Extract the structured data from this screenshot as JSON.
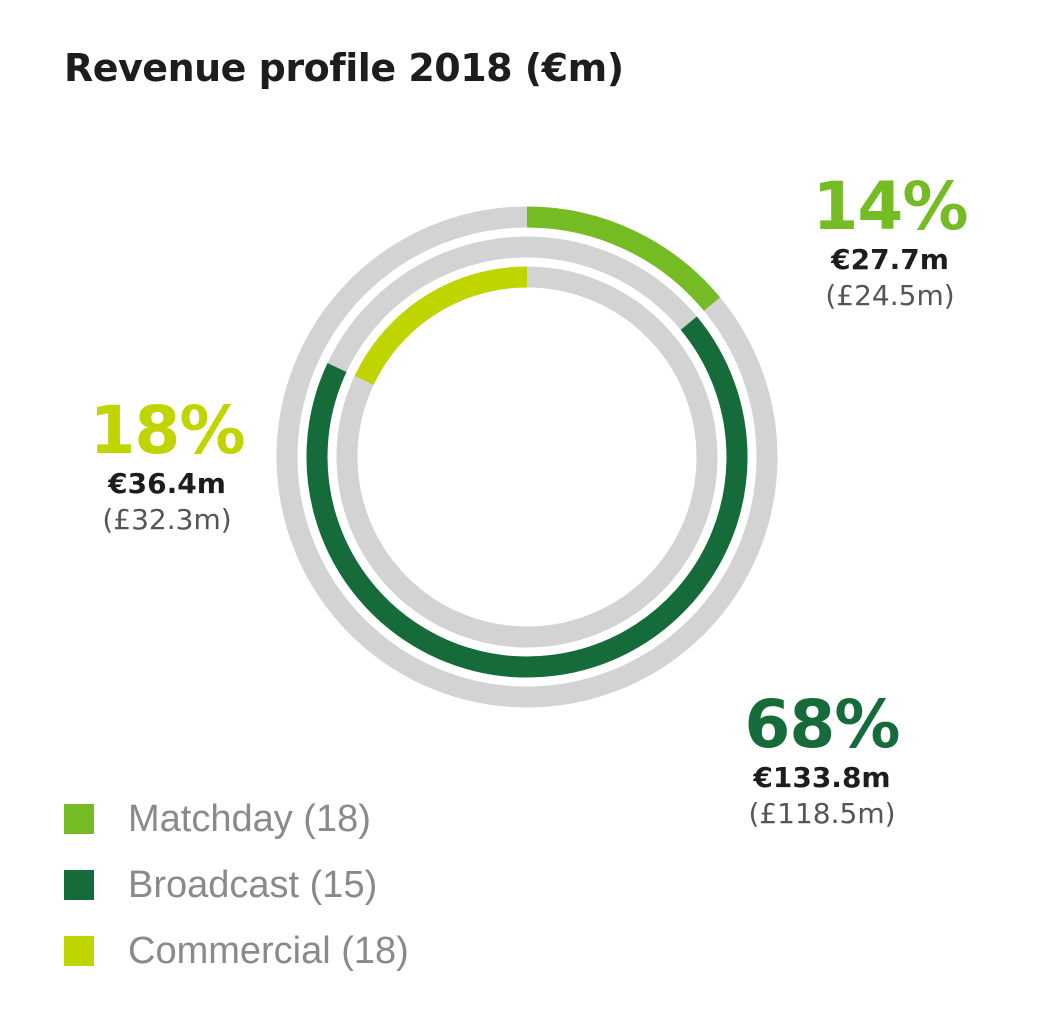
{
  "chart_data": {
    "type": "pie",
    "style": "concentric-rings",
    "title": "Revenue profile 2018 (€m)",
    "track_color": "#d3d3d3",
    "slices": [
      {
        "name": "Matchday (18)",
        "percent": 14,
        "percent_label": "14%",
        "eur": "€27.7m",
        "gbp": "(£24.5m)",
        "value": 27.7,
        "color": "#74bb24"
      },
      {
        "name": "Broadcast (15)",
        "percent": 68,
        "percent_label": "68%",
        "eur": "€133.8m",
        "gbp": "(£118.5m)",
        "value": 133.8,
        "color": "#166b3a"
      },
      {
        "name": "Commercial (18)",
        "percent": 18,
        "percent_label": "18%",
        "eur": "€36.4m",
        "gbp": "(£32.3m)",
        "value": 36.4,
        "color": "#c0d400"
      }
    ]
  }
}
